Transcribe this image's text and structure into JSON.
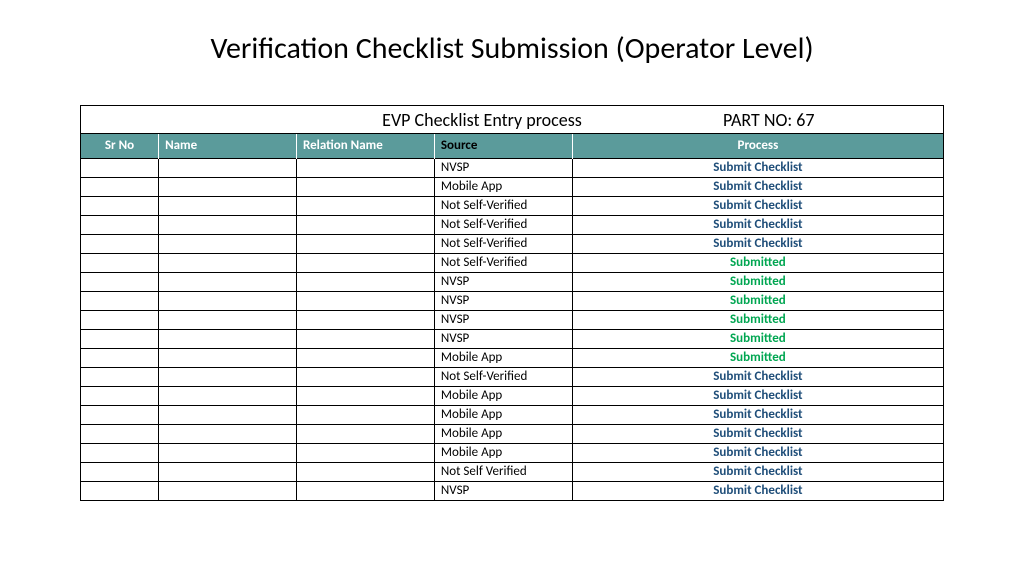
{
  "title": "Verification Checklist Submission (Operator Level)",
  "subheader": {
    "title": "EVP Checklist  Entry process",
    "part_label": "PART NO: 67"
  },
  "columns": [
    "Sr No",
    "Name",
    "Relation Name",
    "Source",
    "Process"
  ],
  "process_labels": {
    "submit": "Submit Checklist",
    "submitted": "Submitted"
  },
  "colors": {
    "header_bg": "#5b9b9b",
    "header_text": "#ffffff",
    "submit_color": "#1f4e79",
    "submitted_color": "#00a651",
    "border": "#000000",
    "page_bg": "#ffffff",
    "text": "#000000"
  },
  "rows": [
    {
      "sr": "",
      "name": "",
      "rel": "",
      "source": "NVSP",
      "status": "submit"
    },
    {
      "sr": "",
      "name": "",
      "rel": "",
      "source": "Mobile App",
      "status": "submit"
    },
    {
      "sr": "",
      "name": "",
      "rel": "",
      "source": "Not Self-Verified",
      "status": "submit"
    },
    {
      "sr": "",
      "name": "",
      "rel": "",
      "source": "Not Self-Verified",
      "status": "submit"
    },
    {
      "sr": "",
      "name": "",
      "rel": "",
      "source": "Not Self-Verified",
      "status": "submit"
    },
    {
      "sr": "",
      "name": "",
      "rel": "",
      "source": "Not Self-Verified",
      "status": "submitted"
    },
    {
      "sr": "",
      "name": "",
      "rel": "",
      "source": "NVSP",
      "status": "submitted"
    },
    {
      "sr": "",
      "name": "",
      "rel": "",
      "source": "NVSP",
      "status": "submitted"
    },
    {
      "sr": "",
      "name": "",
      "rel": "",
      "source": "NVSP",
      "status": "submitted"
    },
    {
      "sr": "",
      "name": "",
      "rel": "",
      "source": "NVSP",
      "status": "submitted"
    },
    {
      "sr": "",
      "name": "",
      "rel": "",
      "source": "Mobile App",
      "status": "submitted"
    },
    {
      "sr": "",
      "name": "",
      "rel": "",
      "source": "Not Self-Verified",
      "status": "submit"
    },
    {
      "sr": "",
      "name": "",
      "rel": "",
      "source": "Mobile App",
      "status": "submit"
    },
    {
      "sr": "",
      "name": "",
      "rel": "",
      "source": "Mobile App",
      "status": "submit"
    },
    {
      "sr": "",
      "name": "",
      "rel": "",
      "source": "Mobile App",
      "status": "submit"
    },
    {
      "sr": "",
      "name": "",
      "rel": "",
      "source": "Mobile App",
      "status": "submit"
    },
    {
      "sr": "",
      "name": "",
      "rel": "",
      "source": "Not Self Verified",
      "status": "submit"
    },
    {
      "sr": "",
      "name": "",
      "rel": "",
      "source": "NVSP",
      "status": "submit"
    }
  ]
}
